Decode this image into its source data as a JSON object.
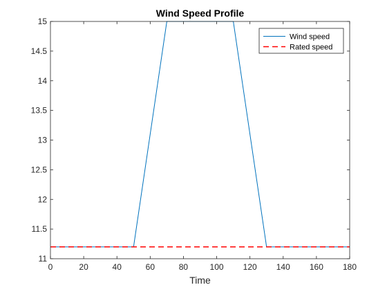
{
  "chart_data": {
    "type": "line",
    "title": "Wind Speed Profile",
    "xlabel": "Time",
    "ylabel": "",
    "xlim": [
      0,
      180
    ],
    "ylim": [
      11,
      15
    ],
    "xticks": [
      0,
      20,
      40,
      60,
      80,
      100,
      120,
      140,
      160,
      180
    ],
    "yticks": [
      11,
      11.5,
      12,
      12.5,
      13,
      13.5,
      14,
      14.5,
      15
    ],
    "grid": false,
    "legend_position": "top-right",
    "series": [
      {
        "name": "Wind speed",
        "style": "solid",
        "color": "#0072BD",
        "x": [
          0,
          50,
          70,
          110,
          130,
          180
        ],
        "y": [
          11.2,
          11.2,
          15,
          15,
          11.2,
          11.2
        ]
      },
      {
        "name": "Rated speed",
        "style": "dashed",
        "color": "#FF0000",
        "x": [
          0,
          180
        ],
        "y": [
          11.2,
          11.2
        ]
      }
    ]
  }
}
